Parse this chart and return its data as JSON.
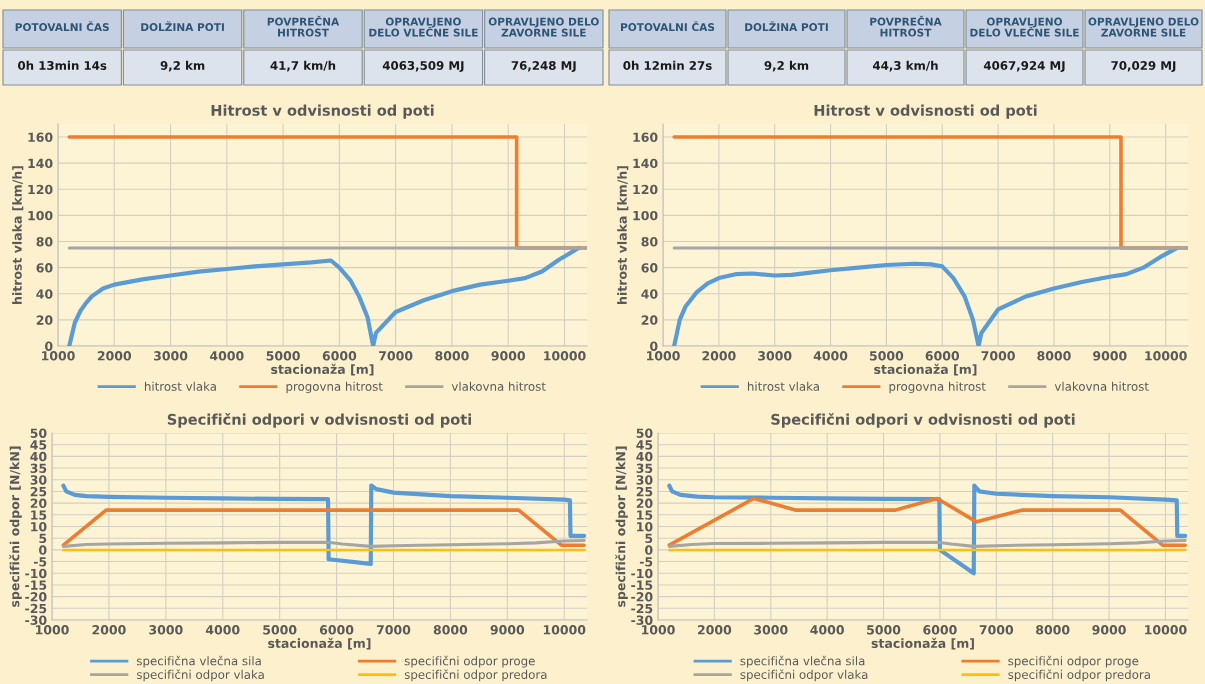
{
  "chart_data": [
    {
      "type": "other",
      "categories": [
        "POTOVALNI ČAS",
        "DOLŽINA POTI",
        "POVPREČNA\nHITROST",
        "OPRAVLJENO\nDELO VLEČNE SILE",
        "OPRAVLJENO DELO\nZAVORNE SILE"
      ],
      "value_labels": [
        "0h 13min 14s",
        "9,2 km",
        "41,7 km/h",
        "4063,509 MJ",
        "76,248 MJ"
      ]
    },
    {
      "type": "other",
      "categories": [
        "POTOVALNI ČAS",
        "DOLŽINA POTI",
        "POVPREČNA\nHITROST",
        "OPRAVLJENO\nDELO VLEČNE SILE",
        "OPRAVLJENO DELO\nZAVORNE SILE"
      ],
      "value_labels": [
        "0h 12min 27s",
        "9,2 km",
        "44,3 km/h",
        "4067,924 MJ",
        "70,029 MJ"
      ]
    },
    {
      "type": "line",
      "title": "Hitrost v odvisnosti od poti",
      "xlabel": "stacionaža [m]",
      "ylabel": "hitrost vlaka [km/h]",
      "xlim": [
        1000,
        10400
      ],
      "xticks": [
        1000,
        2000,
        3000,
        4000,
        5000,
        6000,
        7000,
        8000,
        9000,
        10000
      ],
      "ylim": [
        0,
        170
      ],
      "yticks": [
        0,
        20,
        40,
        60,
        80,
        100,
        120,
        140,
        160
      ],
      "grid": true,
      "legend": "bottom",
      "series": [
        {
          "name": "hitrost vlaka",
          "color": "#5b9bd5",
          "x": [
            1200,
            1300,
            1400,
            1500,
            1600,
            1800,
            2000,
            2500,
            3000,
            3500,
            4000,
            4500,
            5000,
            5500,
            5850,
            6000,
            6200,
            6350,
            6500,
            6600,
            6650,
            7000,
            7500,
            8000,
            8500,
            9000,
            9300,
            9600,
            9900,
            10250
          ],
          "values": [
            0,
            18,
            27,
            33,
            38,
            44,
            47,
            51,
            54,
            57,
            59,
            61,
            62.5,
            64,
            65.5,
            60,
            50,
            38,
            22,
            0,
            10,
            26,
            35,
            42,
            47,
            50,
            52,
            57,
            66,
            75
          ]
        },
        {
          "name": "progovna hitrost",
          "color": "#ed7d31",
          "x": [
            1200,
            9150,
            9150,
            10400
          ],
          "values": [
            160,
            160,
            75,
            75
          ]
        },
        {
          "name": "vlakovna hitrost",
          "color": "#a5a5a5",
          "x": [
            1200,
            10400
          ],
          "values": [
            75,
            75
          ]
        }
      ]
    },
    {
      "type": "line",
      "title": "Hitrost v odvisnosti od poti",
      "xlabel": "stacionaža [m]",
      "ylabel": "hitrost vlaka [km/h]",
      "xlim": [
        1000,
        10400
      ],
      "xticks": [
        1000,
        2000,
        3000,
        4000,
        5000,
        6000,
        7000,
        8000,
        9000,
        10000
      ],
      "ylim": [
        0,
        170
      ],
      "yticks": [
        0,
        20,
        40,
        60,
        80,
        100,
        120,
        140,
        160
      ],
      "grid": true,
      "legend": "bottom",
      "series": [
        {
          "name": "hitrost vlaka",
          "color": "#5b9bd5",
          "x": [
            1200,
            1300,
            1400,
            1600,
            1800,
            2000,
            2300,
            2600,
            3000,
            3300,
            3600,
            4000,
            4500,
            5000,
            5500,
            5800,
            6000,
            6200,
            6400,
            6550,
            6650,
            6700,
            7000,
            7500,
            8000,
            8500,
            9000,
            9300,
            9600,
            9900,
            10200
          ],
          "values": [
            0,
            20,
            30,
            41,
            48,
            52,
            55,
            55.5,
            54,
            54.5,
            56,
            58,
            60,
            62,
            63,
            62.5,
            61,
            52,
            38,
            20,
            0,
            10,
            28,
            38,
            44,
            49,
            53,
            55,
            60,
            68,
            75
          ]
        },
        {
          "name": "progovna hitrost",
          "color": "#ed7d31",
          "x": [
            1200,
            9200,
            9200,
            10400
          ],
          "values": [
            160,
            160,
            75,
            75
          ]
        },
        {
          "name": "vlakovna hitrost",
          "color": "#a5a5a5",
          "x": [
            1200,
            10400
          ],
          "values": [
            75,
            75
          ]
        }
      ]
    },
    {
      "type": "line",
      "title": "Specifični odpori v odvisnosti od poti",
      "xlabel": "stacionaža [m]",
      "ylabel": "specifični odpor [N/kN]",
      "xlim": [
        1000,
        10400
      ],
      "xticks": [
        1000,
        2000,
        3000,
        4000,
        5000,
        6000,
        7000,
        8000,
        9000,
        10000
      ],
      "ylim": [
        -30,
        50
      ],
      "yticks": [
        -30,
        -25,
        -20,
        -15,
        -10,
        -5,
        0,
        5,
        10,
        15,
        20,
        25,
        30,
        35,
        40,
        45,
        50
      ],
      "grid": true,
      "legend": "bottom",
      "series": [
        {
          "name": "specifična vlečna sila",
          "color": "#5b9bd5",
          "x": [
            1200,
            1250,
            1400,
            1600,
            2000,
            3000,
            4000,
            5000,
            5850,
            5860,
            6600,
            6610,
            6700,
            7000,
            8000,
            9000,
            10000,
            10100,
            10110,
            10350
          ],
          "values": [
            27.5,
            25,
            23.5,
            23,
            22.7,
            22.3,
            22,
            21.8,
            21.7,
            -4,
            -6,
            27.5,
            26,
            24.5,
            23,
            22.3,
            21.5,
            21.2,
            6,
            6
          ]
        },
        {
          "name": "specifični odpor proge",
          "color": "#ed7d31",
          "x": [
            1200,
            1950,
            9200,
            9950,
            10350
          ],
          "values": [
            2,
            17,
            17,
            2,
            2
          ]
        },
        {
          "name": "specifični odpor vlaka",
          "color": "#a5a5a5",
          "x": [
            1200,
            1600,
            2000,
            3000,
            4000,
            5000,
            5850,
            6100,
            6600,
            7000,
            8000,
            9000,
            9500,
            10000,
            10350
          ],
          "values": [
            1.5,
            2.3,
            2.5,
            2.8,
            3,
            3.2,
            3.3,
            2.5,
            1.5,
            1.8,
            2.2,
            2.6,
            3,
            3.8,
            4
          ]
        },
        {
          "name": "specifični odpor predora",
          "color": "#ffc000",
          "x": [
            1200,
            10350
          ],
          "values": [
            0,
            0
          ]
        }
      ]
    },
    {
      "type": "line",
      "title": "Specifični odpori v odvisnosti od poti",
      "xlabel": "stacionaža [m]",
      "ylabel": "specifični odpor [N/kN]",
      "xlim": [
        1000,
        10400
      ],
      "xticks": [
        1000,
        2000,
        3000,
        4000,
        5000,
        6000,
        7000,
        8000,
        9000,
        10000
      ],
      "ylim": [
        -30,
        50
      ],
      "yticks": [
        -30,
        -25,
        -20,
        -15,
        -10,
        -5,
        0,
        5,
        10,
        15,
        20,
        25,
        30,
        35,
        40,
        45,
        50
      ],
      "grid": true,
      "legend": "bottom",
      "series": [
        {
          "name": "specifična vlečna sila",
          "color": "#5b9bd5",
          "x": [
            1200,
            1250,
            1400,
            1700,
            2000,
            3000,
            4000,
            5000,
            5990,
            6000,
            6600,
            6610,
            6700,
            7000,
            8000,
            9000,
            10000,
            10200,
            10210,
            10350
          ],
          "values": [
            27.5,
            25,
            23.5,
            22.8,
            22.5,
            22.3,
            22,
            21.8,
            21.7,
            0,
            -10,
            27.5,
            25,
            24,
            23,
            22.5,
            21.5,
            21.2,
            6,
            6
          ]
        },
        {
          "name": "specifični odpor proge",
          "color": "#ed7d31",
          "x": [
            1200,
            2700,
            3450,
            5200,
            5950,
            6650,
            7450,
            9200,
            9950,
            10350
          ],
          "values": [
            2,
            22,
            17,
            17,
            22,
            12,
            17,
            17,
            2,
            2
          ]
        },
        {
          "name": "specifični odpor vlaka",
          "color": "#a5a5a5",
          "x": [
            1200,
            1600,
            2000,
            3000,
            4000,
            5000,
            5950,
            6200,
            6600,
            7000,
            8000,
            9000,
            9500,
            10000,
            10350
          ],
          "values": [
            1.5,
            2.3,
            2.7,
            2.8,
            3,
            3.2,
            3.3,
            2.5,
            1.5,
            1.8,
            2.2,
            2.6,
            3,
            3.8,
            4
          ]
        },
        {
          "name": "specifični odpor predora",
          "color": "#ffc000",
          "x": [
            1200,
            10350
          ],
          "values": [
            0,
            0
          ]
        }
      ]
    }
  ]
}
